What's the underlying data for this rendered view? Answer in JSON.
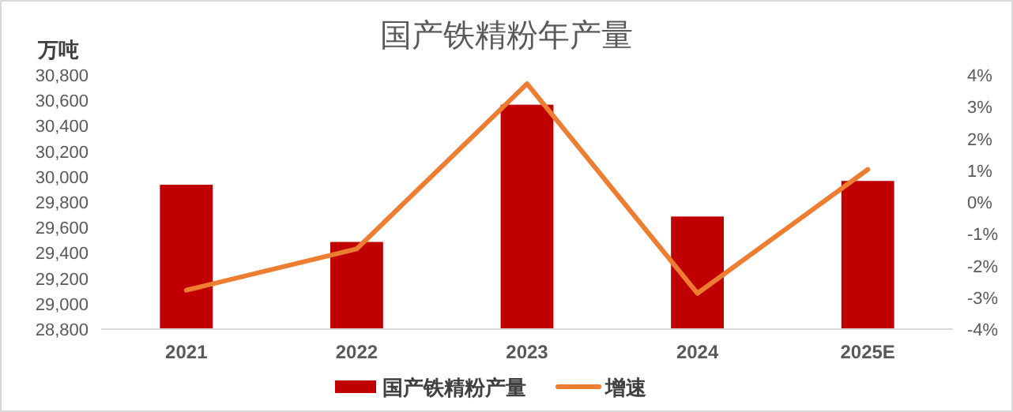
{
  "chart_data": {
    "type": "bar",
    "title": "国产铁精粉年产量",
    "ylabel": "万吨",
    "categories": [
      "2021",
      "2022",
      "2023",
      "2024",
      "2025E"
    ],
    "series": [
      {
        "name": "国产铁精粉产量",
        "color": "#c00000",
        "values": [
          29930,
          29480,
          30560,
          29680,
          29960
        ]
      },
      {
        "name": "增速",
        "type": "line",
        "axis": "y2",
        "color": "#ed7d31",
        "values": [
          -2.8,
          -1.5,
          3.7,
          -2.9,
          1.0
        ]
      }
    ],
    "ylim": [
      28800,
      30800
    ],
    "yticks": [
      {
        "value": 28800,
        "label": "28,800"
      },
      {
        "value": 29000,
        "label": "29,000"
      },
      {
        "value": 29200,
        "label": "29,200"
      },
      {
        "value": 29400,
        "label": "29,400"
      },
      {
        "value": 29600,
        "label": "29,600"
      },
      {
        "value": 29800,
        "label": "29,800"
      },
      {
        "value": 30000,
        "label": "30,000"
      },
      {
        "value": 30200,
        "label": "30,200"
      },
      {
        "value": 30400,
        "label": "30,400"
      },
      {
        "value": 30600,
        "label": "30,600"
      },
      {
        "value": 30800,
        "label": "30,800"
      }
    ],
    "y2lim": [
      -4,
      4
    ],
    "y2ticks": [
      {
        "value": -4,
        "label": "-4%"
      },
      {
        "value": -3,
        "label": "-3%"
      },
      {
        "value": -2,
        "label": "-2%"
      },
      {
        "value": -1,
        "label": "-1%"
      },
      {
        "value": 0,
        "label": "0%"
      },
      {
        "value": 1,
        "label": "1%"
      },
      {
        "value": 2,
        "label": "2%"
      },
      {
        "value": 3,
        "label": "3%"
      },
      {
        "value": 4,
        "label": "4%"
      }
    ],
    "legend": "bottom",
    "grid": false
  }
}
